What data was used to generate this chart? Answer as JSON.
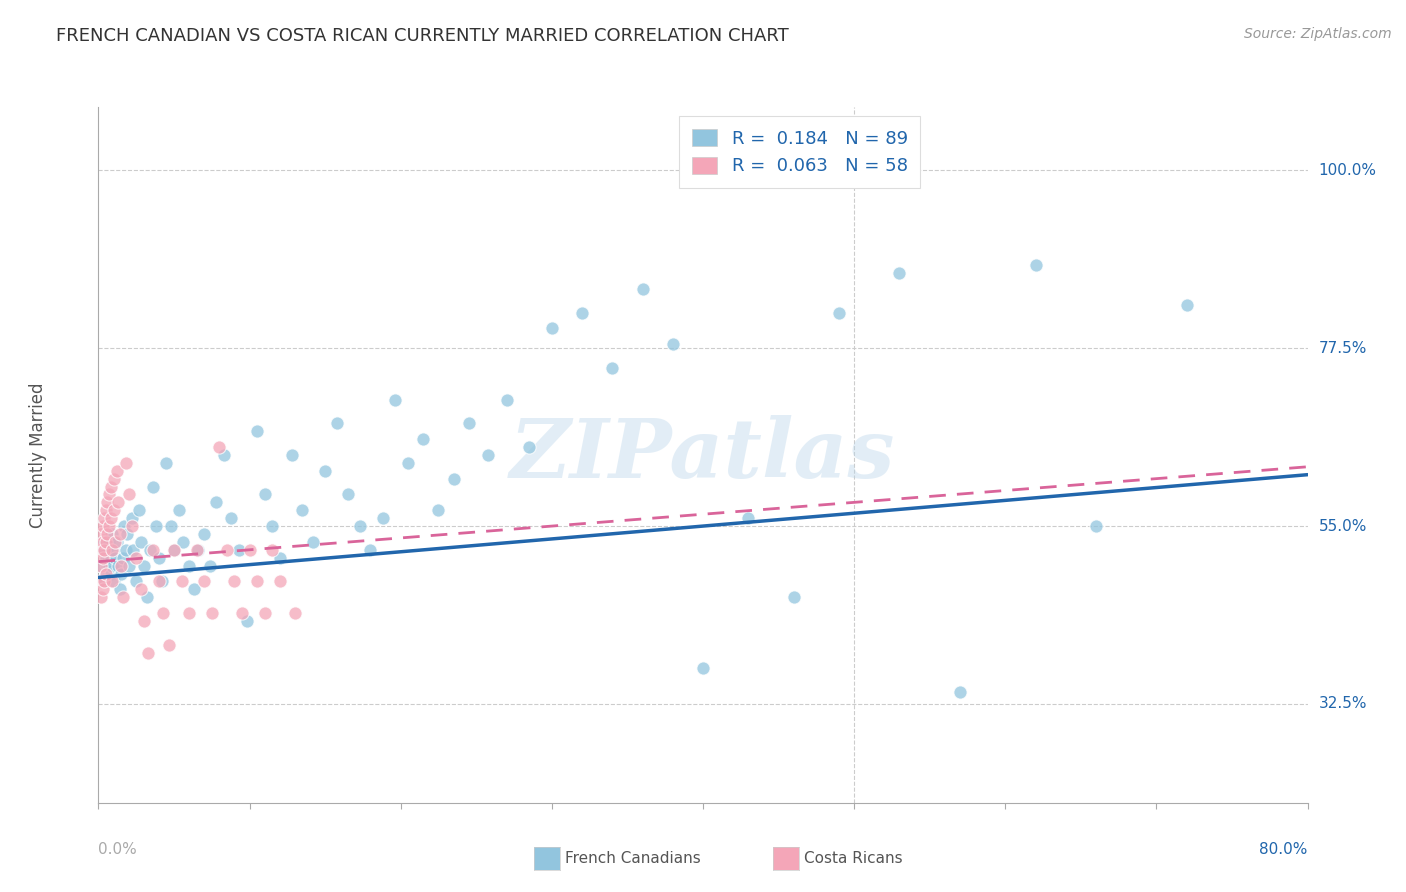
{
  "title": "FRENCH CANADIAN VS COSTA RICAN CURRENTLY MARRIED CORRELATION CHART",
  "source": "Source: ZipAtlas.com",
  "ylabel": "Currently Married",
  "watermark": "ZIPatlas",
  "blue_color": "#92c5de",
  "pink_color": "#f4a6b8",
  "blue_line_color": "#2166ac",
  "pink_line_color": "#d9649a",
  "legend_text_color": "#2166ac",
  "axis_color": "#aaaaaa",
  "grid_color": "#cccccc",
  "title_color": "#333333",
  "source_color": "#999999",
  "yticks": [
    32.5,
    55.0,
    77.5,
    100.0
  ],
  "ytick_labels": [
    "32.5%",
    "55.0%",
    "77.5%",
    "100.0%"
  ],
  "xlim": [
    0.0,
    0.8
  ],
  "ylim": [
    20.0,
    108.0
  ],
  "blue_line_x0": 0.0,
  "blue_line_x1": 0.8,
  "blue_line_y0": 48.5,
  "blue_line_y1": 61.5,
  "pink_line_x0": 0.0,
  "pink_line_x1": 0.8,
  "pink_line_y0": 50.5,
  "pink_line_y1": 62.5,
  "blue_scatter_x": [
    0.002,
    0.003,
    0.004,
    0.004,
    0.005,
    0.005,
    0.006,
    0.006,
    0.007,
    0.007,
    0.008,
    0.008,
    0.009,
    0.009,
    0.01,
    0.01,
    0.011,
    0.012,
    0.013,
    0.014,
    0.015,
    0.016,
    0.017,
    0.018,
    0.019,
    0.02,
    0.022,
    0.023,
    0.025,
    0.027,
    0.028,
    0.03,
    0.032,
    0.034,
    0.036,
    0.038,
    0.04,
    0.042,
    0.045,
    0.048,
    0.05,
    0.053,
    0.056,
    0.06,
    0.063,
    0.066,
    0.07,
    0.074,
    0.078,
    0.083,
    0.088,
    0.093,
    0.098,
    0.105,
    0.11,
    0.115,
    0.12,
    0.128,
    0.135,
    0.142,
    0.15,
    0.158,
    0.165,
    0.173,
    0.18,
    0.188,
    0.196,
    0.205,
    0.215,
    0.225,
    0.235,
    0.245,
    0.258,
    0.27,
    0.285,
    0.3,
    0.32,
    0.34,
    0.36,
    0.38,
    0.4,
    0.43,
    0.46,
    0.49,
    0.53,
    0.57,
    0.62,
    0.66,
    0.72
  ],
  "blue_scatter_y": [
    50.0,
    52.0,
    48.0,
    53.0,
    51.0,
    49.0,
    50.0,
    52.0,
    53.0,
    50.0,
    51.0,
    49.0,
    54.0,
    50.0,
    52.0,
    48.0,
    51.0,
    53.0,
    50.0,
    47.0,
    49.0,
    51.0,
    55.0,
    52.0,
    54.0,
    50.0,
    56.0,
    52.0,
    48.0,
    57.0,
    53.0,
    50.0,
    46.0,
    52.0,
    60.0,
    55.0,
    51.0,
    48.0,
    63.0,
    55.0,
    52.0,
    57.0,
    53.0,
    50.0,
    47.0,
    52.0,
    54.0,
    50.0,
    58.0,
    64.0,
    56.0,
    52.0,
    43.0,
    67.0,
    59.0,
    55.0,
    51.0,
    64.0,
    57.0,
    53.0,
    62.0,
    68.0,
    59.0,
    55.0,
    52.0,
    56.0,
    71.0,
    63.0,
    66.0,
    57.0,
    61.0,
    68.0,
    64.0,
    71.0,
    65.0,
    80.0,
    82.0,
    75.0,
    85.0,
    78.0,
    37.0,
    56.0,
    46.0,
    82.0,
    87.0,
    34.0,
    88.0,
    55.0,
    83.0
  ],
  "pink_scatter_x": [
    0.001,
    0.001,
    0.002,
    0.002,
    0.002,
    0.003,
    0.003,
    0.003,
    0.003,
    0.004,
    0.004,
    0.004,
    0.005,
    0.005,
    0.005,
    0.006,
    0.006,
    0.007,
    0.007,
    0.008,
    0.008,
    0.009,
    0.009,
    0.01,
    0.01,
    0.011,
    0.012,
    0.013,
    0.014,
    0.015,
    0.016,
    0.018,
    0.02,
    0.022,
    0.025,
    0.028,
    0.03,
    0.033,
    0.036,
    0.04,
    0.043,
    0.047,
    0.05,
    0.055,
    0.06,
    0.065,
    0.07,
    0.075,
    0.08,
    0.085,
    0.09,
    0.095,
    0.1,
    0.105,
    0.11,
    0.115,
    0.12,
    0.13
  ],
  "pink_scatter_y": [
    52.0,
    48.0,
    54.0,
    50.0,
    46.0,
    55.0,
    51.0,
    47.0,
    53.0,
    56.0,
    52.0,
    48.0,
    57.0,
    53.0,
    49.0,
    58.0,
    54.0,
    59.0,
    55.0,
    60.0,
    56.0,
    52.0,
    48.0,
    61.0,
    57.0,
    53.0,
    62.0,
    58.0,
    54.0,
    50.0,
    46.0,
    63.0,
    59.0,
    55.0,
    51.0,
    47.0,
    43.0,
    39.0,
    52.0,
    48.0,
    44.0,
    40.0,
    52.0,
    48.0,
    44.0,
    52.0,
    48.0,
    44.0,
    65.0,
    52.0,
    48.0,
    44.0,
    52.0,
    48.0,
    44.0,
    52.0,
    48.0,
    44.0
  ]
}
